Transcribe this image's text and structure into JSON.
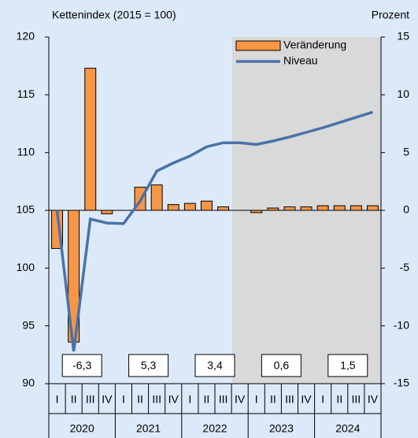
{
  "chart_data": {
    "type": "bar",
    "y_label": "Kettenindex (2015 = 100)",
    "y2_label": "Prozent",
    "categories": [
      "I",
      "II",
      "III",
      "IV",
      "I",
      "II",
      "III",
      "IV",
      "I",
      "II",
      "III",
      "IV",
      "I",
      "II",
      "III",
      "IV",
      "I",
      "II",
      "III",
      "IV"
    ],
    "years": [
      "2020",
      "2021",
      "2022",
      "2023",
      "2024"
    ],
    "series": [
      {
        "name": "Veränderung",
        "type": "bar",
        "axis": "y2",
        "color": "#f79646",
        "values": [
          -3.3,
          -11.4,
          12.3,
          -0.3,
          0,
          2.0,
          2.2,
          0.5,
          0.6,
          0.8,
          0.3,
          0,
          -0.2,
          0.2,
          0.3,
          0.3,
          0.4,
          0.4,
          0.4,
          0.4
        ]
      },
      {
        "name": "Niveau",
        "type": "line",
        "color": "#4a72a8",
        "values": [
          105.0,
          92.8,
          104.25,
          103.9,
          103.85,
          105.8,
          108.4,
          109.1,
          109.7,
          110.5,
          110.85,
          110.85,
          110.7,
          111.0,
          111.35,
          111.75,
          112.15,
          112.6,
          113.05,
          113.5
        ]
      }
    ],
    "annual_values": [
      -6.3,
      5.3,
      3.4,
      0.6,
      1.5
    ],
    "annual_value_labels": [
      "-6,3",
      "5,3",
      "3,4",
      "0,6",
      "1,5"
    ],
    "ylim": [
      90,
      120
    ],
    "yticks": [
      90,
      95,
      100,
      105,
      110,
      115,
      120
    ],
    "y2lim": [
      -15,
      15
    ],
    "y2ticks": [
      -15,
      -10,
      -5,
      0,
      5,
      10,
      15
    ],
    "legend": "upper right"
  }
}
